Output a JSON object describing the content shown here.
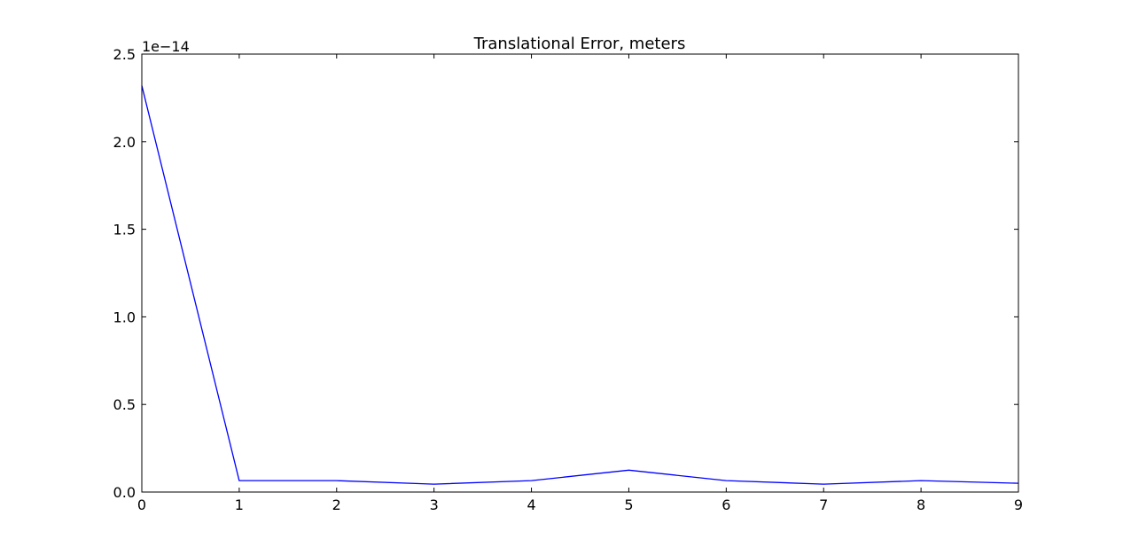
{
  "chart_data": {
    "type": "line",
    "title": "Translational Error, meters",
    "xlabel": "",
    "ylabel": "",
    "y_offset_label": "1e−14",
    "xlim": [
      0,
      9
    ],
    "ylim": [
      0.0,
      2.5
    ],
    "x_ticks": [
      0,
      1,
      2,
      3,
      4,
      5,
      6,
      7,
      8,
      9
    ],
    "x_tick_labels": [
      "0",
      "1",
      "2",
      "3",
      "4",
      "5",
      "6",
      "7",
      "8",
      "9"
    ],
    "y_ticks": [
      0.0,
      0.5,
      1.0,
      1.5,
      2.0,
      2.5
    ],
    "y_tick_labels": [
      "0.0",
      "0.5",
      "1.0",
      "1.5",
      "2.0",
      "2.5"
    ],
    "grid": false,
    "legend": "none",
    "series": [
      {
        "color": "#0000ff",
        "x": [
          0,
          1,
          2,
          3,
          4,
          5,
          6,
          7,
          8,
          9
        ],
        "y": [
          2.32,
          0.065,
          0.065,
          0.045,
          0.065,
          0.125,
          0.065,
          0.045,
          0.065,
          0.05
        ]
      }
    ]
  }
}
